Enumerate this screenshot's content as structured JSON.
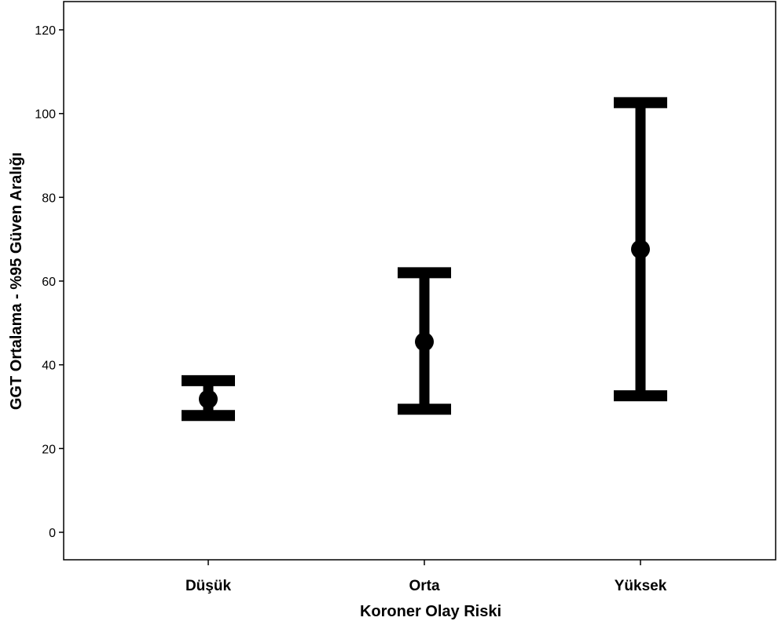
{
  "chart_data": {
    "type": "errorbar",
    "title": "",
    "xlabel": "Koroner Olay Riski",
    "ylabel": "GGT Ortalama - %95 Güven Aralığı",
    "ylim": [
      -6,
      126
    ],
    "yticks": [
      0,
      20,
      40,
      60,
      80,
      100,
      120
    ],
    "categories": [
      "Düşük",
      "Orta",
      "Yüksek"
    ],
    "series": [
      {
        "mean": [
          31.8,
          45.5,
          67.6
        ],
        "lower": [
          27.9,
          29.4,
          32.6
        ],
        "upper": [
          36.2,
          62.0,
          102.6
        ]
      }
    ],
    "grid": false,
    "legend": "none"
  }
}
